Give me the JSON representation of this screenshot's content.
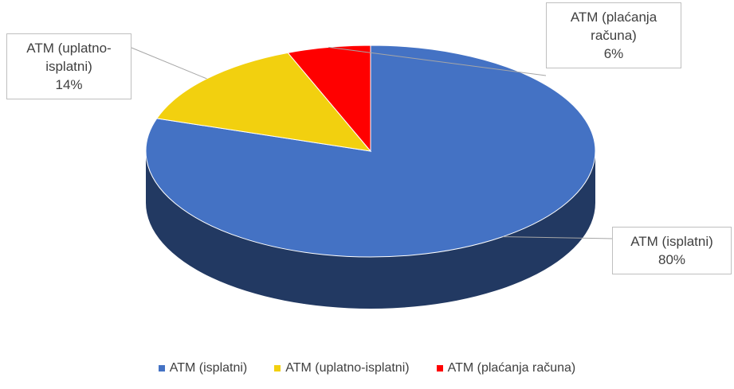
{
  "chart_data": {
    "type": "pie3d",
    "categories": [
      "ATM (isplatni)",
      "ATM (uplatno-isplatni)",
      "ATM (plaćanja računa)"
    ],
    "values": [
      80,
      14,
      6
    ],
    "value_labels": [
      "80%",
      "14%",
      "6%"
    ],
    "colors": [
      "#4472c4",
      "#f2d00f",
      "#ff0000"
    ],
    "legend": "bottom"
  }
}
